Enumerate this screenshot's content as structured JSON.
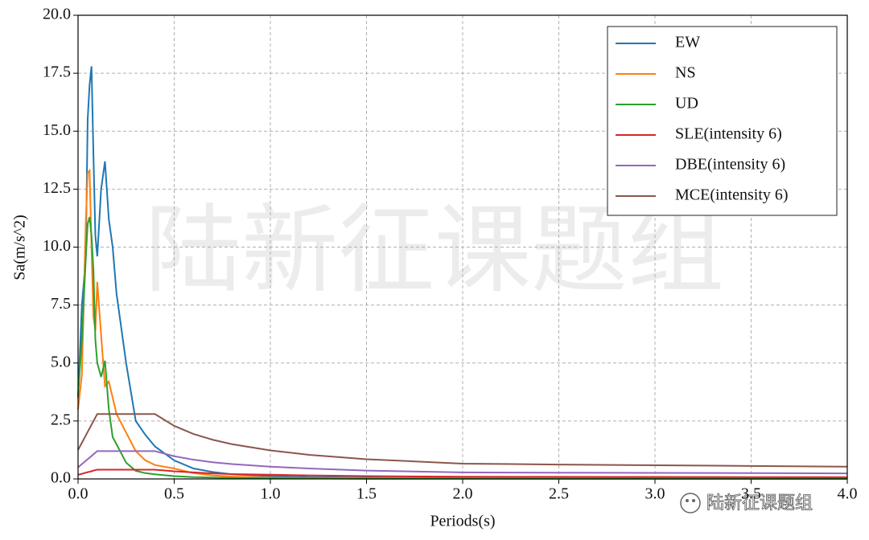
{
  "chart_data": {
    "type": "line",
    "xlabel": "Periods(s)",
    "ylabel": "Sa(m/s^2)",
    "watermark": "陆新征课题组",
    "x": [
      0,
      0.02,
      0.04,
      0.05,
      0.06,
      0.07,
      0.08,
      0.09,
      0.1,
      0.12,
      0.14,
      0.16,
      0.18,
      0.2,
      0.25,
      0.3,
      0.35,
      0.4,
      0.5,
      0.6,
      0.7,
      0.8,
      1.0,
      1.2,
      1.5,
      2.0,
      2.5,
      3.0,
      3.5,
      4.0
    ],
    "series": [
      {
        "name": "EW",
        "color": "#1f77b4",
        "values": [
          3.5,
          7.5,
          9.5,
          15.5,
          17.0,
          17.8,
          14,
          10.5,
          9.6,
          12.5,
          13.7,
          11.2,
          10,
          8,
          5,
          2.5,
          1.9,
          1.4,
          0.8,
          0.45,
          0.3,
          0.2,
          0.12,
          0.08,
          0.05,
          0.03,
          0.02,
          0.015,
          0.01,
          0.01
        ]
      },
      {
        "name": "NS",
        "color": "#ff7f0e",
        "values": [
          3,
          4.5,
          11,
          13.2,
          13.3,
          10,
          7,
          6.4,
          8.5,
          6.2,
          4,
          4.2,
          3.5,
          2.8,
          2,
          1.2,
          0.8,
          0.6,
          0.45,
          0.25,
          0.15,
          0.1,
          0.06,
          0.04,
          0.03,
          0.02,
          0.01,
          0.01,
          0.01,
          0.01
        ]
      },
      {
        "name": "UD",
        "color": "#2ca02c",
        "values": [
          3.6,
          6,
          9.5,
          11,
          11.3,
          10.5,
          9,
          6,
          5,
          4.4,
          5.1,
          3,
          1.8,
          1.5,
          0.7,
          0.35,
          0.25,
          0.2,
          0.12,
          0.08,
          0.06,
          0.04,
          0.03,
          0.02,
          0.01,
          0.01,
          0.01,
          0.01,
          0.01,
          0.01
        ]
      },
      {
        "name": "SLE(intensity 6)",
        "color": "#d62728",
        "values": [
          0.18,
          0.22,
          0.27,
          0.29,
          0.31,
          0.33,
          0.36,
          0.38,
          0.4,
          0.4,
          0.4,
          0.4,
          0.4,
          0.4,
          0.4,
          0.4,
          0.4,
          0.4,
          0.33,
          0.28,
          0.24,
          0.21,
          0.18,
          0.15,
          0.12,
          0.094,
          0.09,
          0.085,
          0.08,
          0.075
        ]
      },
      {
        "name": "DBE(intensity 6)",
        "color": "#9467bd",
        "values": [
          0.5,
          0.64,
          0.78,
          0.85,
          0.92,
          0.99,
          1.06,
          1.13,
          1.2,
          1.2,
          1.2,
          1.2,
          1.2,
          1.2,
          1.2,
          1.2,
          1.2,
          1.2,
          0.98,
          0.83,
          0.72,
          0.64,
          0.53,
          0.45,
          0.36,
          0.28,
          0.27,
          0.26,
          0.25,
          0.24
        ]
      },
      {
        "name": "MCE(intensity 6)",
        "color": "#8c564b",
        "values": [
          1.25,
          1.56,
          1.87,
          2.03,
          2.18,
          2.34,
          2.49,
          2.65,
          2.8,
          2.8,
          2.8,
          2.8,
          2.8,
          2.8,
          2.8,
          2.8,
          2.8,
          2.8,
          2.29,
          1.94,
          1.69,
          1.5,
          1.23,
          1.04,
          0.85,
          0.66,
          0.62,
          0.59,
          0.56,
          0.53
        ]
      }
    ],
    "xlim": [
      0,
      4
    ],
    "xticks": [
      {
        "value": 0,
        "label": "0.0"
      },
      0.5,
      {
        "value": 1,
        "label": "1.0"
      },
      1.5,
      {
        "value": 2,
        "label": "2.0"
      },
      2.5,
      {
        "value": 3,
        "label": "3.0"
      },
      3.5,
      {
        "value": 4,
        "label": "4.0"
      }
    ],
    "ylim": [
      0,
      20
    ],
    "yticks": [
      {
        "value": 0,
        "label": "0.0"
      },
      2.5,
      {
        "value": 5,
        "label": "5.0"
      },
      7.5,
      {
        "value": 10,
        "label": "10.0"
      },
      12.5,
      {
        "value": 15,
        "label": "15.0"
      },
      17.5,
      {
        "value": 20,
        "label": "20.0"
      }
    ],
    "grid": true,
    "legend": "upper right"
  }
}
